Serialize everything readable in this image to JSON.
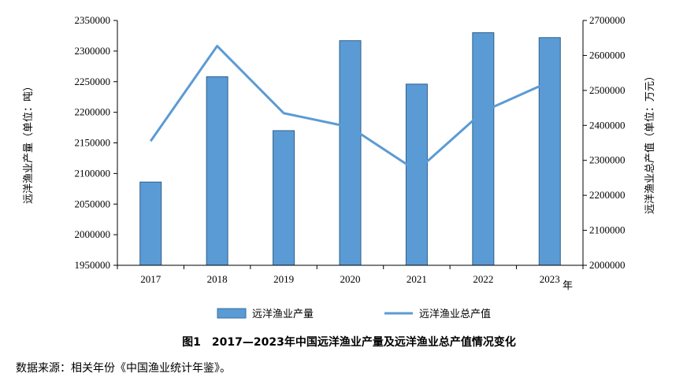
{
  "chart_data": {
    "type": "bar",
    "categories": [
      "2017",
      "2018",
      "2019",
      "2020",
      "2021",
      "2022",
      "2023"
    ],
    "x_unit": "年",
    "series": [
      {
        "name": "远洋渔业产量",
        "type": "bar",
        "axis": "left",
        "color": "#5B9BD5",
        "values": [
          2086000,
          2258000,
          2170000,
          2317000,
          2246000,
          2330000,
          2322000
        ]
      },
      {
        "name": "远洋渔业总产值",
        "type": "line",
        "axis": "right",
        "color": "#5B9BD5",
        "values": [
          2355000,
          2627000,
          2435000,
          2395000,
          2270000,
          2440000,
          2525000
        ]
      }
    ],
    "ylabel": "远洋渔业产量（单位：吨）",
    "ylim": [
      1950000,
      2350000
    ],
    "yticks": [
      1950000,
      2000000,
      2050000,
      2100000,
      2150000,
      2200000,
      2250000,
      2300000,
      2350000
    ],
    "y2label": "远洋渔业总产值（单位：万元）",
    "y2lim": [
      2000000,
      2700000
    ],
    "y2ticks": [
      2000000,
      2100000,
      2200000,
      2300000,
      2400000,
      2500000,
      2600000,
      2700000
    ],
    "legend_position": "bottom",
    "grid": false
  },
  "caption": "图1　2017—2023年中国远洋渔业产量及远洋渔业总产值情况变化",
  "source": "数据来源：相关年份《中国渔业统计年鉴》。"
}
